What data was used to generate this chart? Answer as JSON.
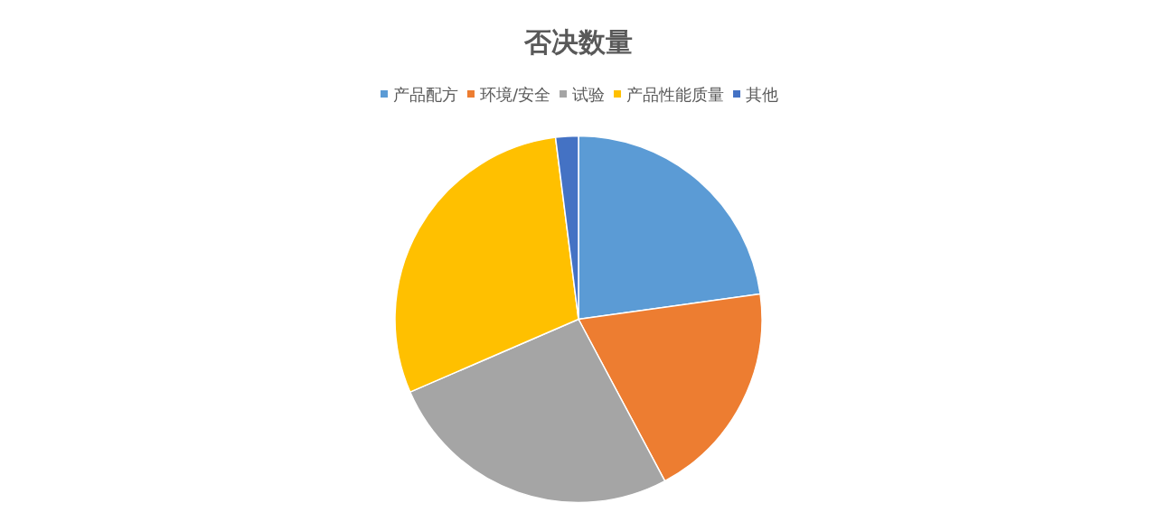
{
  "chart_data": {
    "type": "pie",
    "title": "否决数量",
    "categories": [
      "产品配方",
      "环境/安全",
      "试验",
      "产品性能质量",
      "其他"
    ],
    "values": [
      22.8,
      19.4,
      26.3,
      29.5,
      2.0
    ],
    "colors": [
      "#5b9bd5",
      "#ed7d31",
      "#a5a5a5",
      "#ffc000",
      "#4472c4"
    ],
    "legend": "top"
  }
}
